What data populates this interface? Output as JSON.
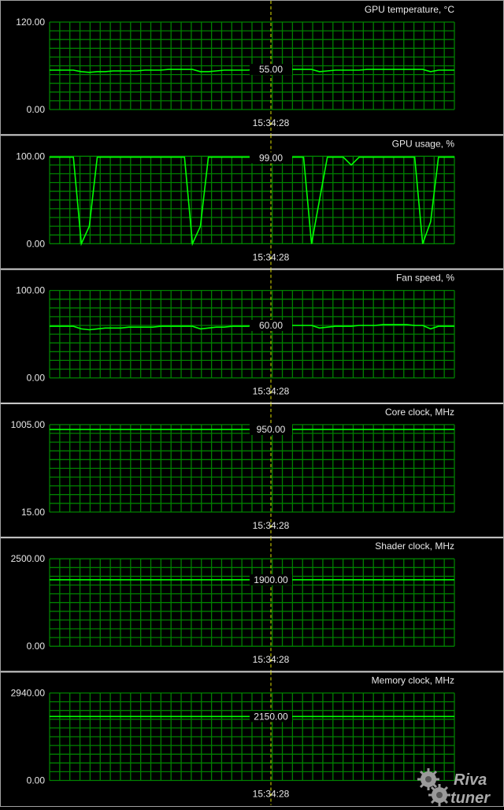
{
  "time_label": "15:34:28",
  "colors": {
    "grid": "#008000",
    "trace": "#00ff00",
    "cursor": "#e0e000",
    "text": "#e8e8e8",
    "separator": "#d0d0d0",
    "background": "#000000"
  },
  "logo_text": "RivaTuner",
  "chart_data": [
    {
      "type": "line",
      "title": "GPU temperature, °C",
      "ylim": [
        0,
        120
      ],
      "ytick_labels": [
        "120.00",
        "0.00"
      ],
      "current_label": "55.00",
      "current": 55,
      "grid": true,
      "values": [
        54,
        54,
        54,
        54,
        52,
        51,
        52,
        52,
        53,
        53,
        53,
        53,
        54,
        54,
        54,
        55,
        55,
        55,
        55,
        52,
        52,
        53,
        54,
        54,
        54,
        54,
        55,
        55,
        55,
        55,
        55,
        55,
        55,
        55,
        52,
        53,
        54,
        54,
        54,
        54,
        55,
        55,
        55,
        55,
        55,
        55,
        55,
        55,
        52,
        54,
        54,
        54
      ]
    },
    {
      "type": "line",
      "title": "GPU usage, %",
      "ylim": [
        0,
        100
      ],
      "ytick_labels": [
        "100.00",
        "0.00"
      ],
      "current_label": "99.00",
      "current": 99,
      "grid": true,
      "values": [
        99,
        99,
        99,
        99,
        0,
        20,
        99,
        99,
        99,
        99,
        99,
        99,
        99,
        99,
        99,
        99,
        99,
        99,
        0,
        20,
        99,
        99,
        99,
        99,
        99,
        99,
        99,
        99,
        99,
        99,
        99,
        99,
        99,
        0,
        50,
        99,
        99,
        99,
        90,
        99,
        99,
        99,
        99,
        99,
        99,
        99,
        99,
        0,
        25,
        99,
        99,
        99
      ]
    },
    {
      "type": "line",
      "title": "Fan speed, %",
      "ylim": [
        0,
        100
      ],
      "ytick_labels": [
        "100.00",
        "0.00"
      ],
      "current_label": "60.00",
      "current": 60,
      "grid": true,
      "values": [
        59,
        59,
        59,
        59,
        56,
        55,
        56,
        57,
        57,
        57,
        58,
        58,
        58,
        58,
        59,
        59,
        59,
        59,
        59,
        56,
        57,
        58,
        58,
        59,
        59,
        59,
        60,
        60,
        60,
        60,
        60,
        60,
        60,
        60,
        57,
        58,
        59,
        59,
        59,
        60,
        60,
        60,
        61,
        61,
        61,
        61,
        60,
        60,
        56,
        59,
        59,
        59
      ]
    },
    {
      "type": "line",
      "title": "Core clock, MHz",
      "ylim": [
        15,
        1005
      ],
      "ytick_labels": [
        "1005.00",
        "15.00"
      ],
      "current_label": "950.00",
      "current": 950,
      "grid": true,
      "values": [
        950,
        950,
        950,
        950,
        950,
        950,
        950,
        950,
        950,
        950,
        950,
        950,
        950,
        950,
        950,
        950,
        950,
        950,
        950,
        950,
        950,
        950,
        950,
        950,
        950,
        950,
        950,
        950,
        950,
        950,
        950,
        950,
        950,
        950,
        950,
        950,
        950,
        950,
        950,
        950,
        950,
        950,
        950,
        950,
        950,
        950,
        950,
        950,
        950,
        950,
        950,
        950
      ]
    },
    {
      "type": "line",
      "title": "Shader clock, MHz",
      "ylim": [
        0,
        2500
      ],
      "ytick_labels": [
        "2500.00",
        "0.00"
      ],
      "current_label": "1900.00",
      "current": 1900,
      "grid": true,
      "values": [
        1900,
        1900,
        1900,
        1900,
        1900,
        1900,
        1900,
        1900,
        1900,
        1900,
        1900,
        1900,
        1900,
        1900,
        1900,
        1900,
        1900,
        1900,
        1900,
        1900,
        1900,
        1900,
        1900,
        1900,
        1900,
        1900,
        1900,
        1900,
        1900,
        1900,
        1900,
        1900,
        1900,
        1900,
        1900,
        1900,
        1900,
        1900,
        1900,
        1900,
        1900,
        1900,
        1900,
        1900,
        1900,
        1900,
        1900,
        1900,
        1900,
        1900,
        1900,
        1900
      ]
    },
    {
      "type": "line",
      "title": "Memory clock, MHz",
      "ylim": [
        0,
        2940
      ],
      "ytick_labels": [
        "2940.00",
        "0.00"
      ],
      "current_label": "2150.00",
      "current": 2150,
      "grid": true,
      "values": [
        2150,
        2150,
        2150,
        2150,
        2150,
        2150,
        2150,
        2150,
        2150,
        2150,
        2150,
        2150,
        2150,
        2150,
        2150,
        2150,
        2150,
        2150,
        2150,
        2150,
        2150,
        2150,
        2150,
        2150,
        2150,
        2150,
        2150,
        2150,
        2150,
        2150,
        2150,
        2150,
        2150,
        2150,
        2150,
        2150,
        2150,
        2150,
        2150,
        2150,
        2150,
        2150,
        2150,
        2150,
        2150,
        2150,
        2150,
        2150,
        2150,
        2150,
        2150,
        2150
      ]
    }
  ]
}
